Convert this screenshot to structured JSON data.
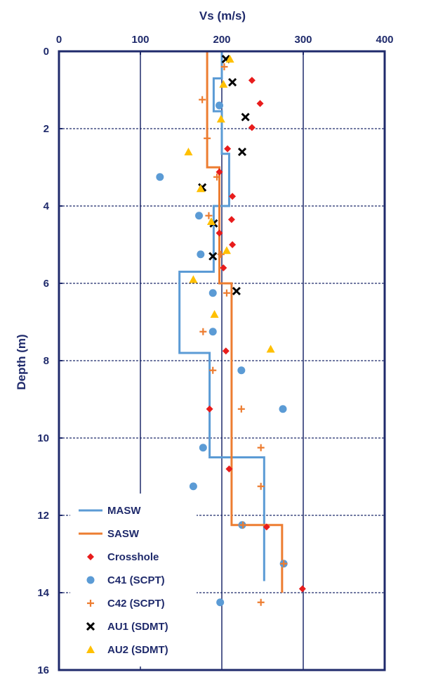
{
  "chart_data": {
    "type": "scatter",
    "title": "",
    "xlabel": "Vs (m/s)",
    "ylabel": "Depth (m)",
    "xlim": [
      0,
      400
    ],
    "ylim": [
      0,
      16
    ],
    "x_axis_position": "top",
    "y_inverted": true,
    "x_ticks": [
      0,
      100,
      200,
      300,
      400
    ],
    "y_ticks": [
      0,
      2,
      4,
      6,
      8,
      10,
      12,
      14,
      16
    ],
    "legend_position": "bottom-left",
    "colors": {
      "axis": "#1f2a6b",
      "masw": "#5b9bd5",
      "sasw": "#ed7d31",
      "crosshole": "#e81c1c",
      "c41": "#5b9bd5",
      "c42": "#ed7d31",
      "au1": "#000000",
      "au2": "#ffc000"
    },
    "series": [
      {
        "name": "MASW",
        "kind": "line",
        "color_key": "masw",
        "points": [
          [
            200,
            0
          ],
          [
            200,
            0.7
          ],
          [
            190,
            0.7
          ],
          [
            190,
            1.55
          ],
          [
            200,
            1.55
          ],
          [
            200,
            2.65
          ],
          [
            209,
            2.65
          ],
          [
            209,
            4.0
          ],
          [
            190,
            4.0
          ],
          [
            190,
            5.7
          ],
          [
            148,
            5.7
          ],
          [
            148,
            7.8
          ],
          [
            185,
            7.8
          ],
          [
            185,
            10.5
          ],
          [
            252,
            10.5
          ],
          [
            252,
            13.7
          ]
        ]
      },
      {
        "name": "SASW",
        "kind": "line",
        "color_key": "sasw",
        "points": [
          [
            182,
            0
          ],
          [
            182,
            3.0
          ],
          [
            197,
            3.0
          ],
          [
            197,
            6.0
          ],
          [
            212,
            6.0
          ],
          [
            212,
            12.25
          ],
          [
            274,
            12.25
          ],
          [
            274,
            14.0
          ]
        ]
      },
      {
        "name": "Crosshole",
        "kind": "marker",
        "marker": "diamond",
        "color_key": "crosshole",
        "points": [
          [
            237,
            0.75
          ],
          [
            247,
            1.35
          ],
          [
            237,
            1.97
          ],
          [
            207,
            2.52
          ],
          [
            197,
            3.12
          ],
          [
            213,
            3.75
          ],
          [
            212,
            4.35
          ],
          [
            197,
            4.7
          ],
          [
            213,
            5.0
          ],
          [
            202,
            5.6
          ],
          [
            205,
            7.75
          ],
          [
            185,
            9.25
          ],
          [
            209,
            10.8
          ],
          [
            255,
            12.3
          ],
          [
            299,
            13.9
          ]
        ]
      },
      {
        "name": "C41 (SCPT)",
        "kind": "marker",
        "marker": "circle",
        "color_key": "c41",
        "points": [
          [
            197,
            1.4
          ],
          [
            124,
            3.25
          ],
          [
            172,
            4.25
          ],
          [
            174,
            5.25
          ],
          [
            189,
            6.25
          ],
          [
            189,
            7.25
          ],
          [
            224,
            8.25
          ],
          [
            275,
            9.25
          ],
          [
            177,
            10.25
          ],
          [
            165,
            11.25
          ],
          [
            225,
            12.25
          ],
          [
            276,
            13.25
          ],
          [
            198,
            14.25
          ]
        ]
      },
      {
        "name": "C42 (SCPT)",
        "kind": "marker",
        "marker": "plus",
        "color_key": "c42",
        "points": [
          [
            203,
            0.4
          ],
          [
            176,
            1.25
          ],
          [
            182,
            2.25
          ],
          [
            194,
            3.25
          ],
          [
            184,
            4.25
          ],
          [
            199,
            5.25
          ],
          [
            206,
            6.25
          ],
          [
            177,
            7.25
          ],
          [
            189,
            8.25
          ],
          [
            224,
            9.25
          ],
          [
            248,
            10.25
          ],
          [
            248,
            11.25
          ],
          [
            226,
            12.25
          ],
          [
            276,
            13.25
          ],
          [
            248,
            14.25
          ]
        ]
      },
      {
        "name": "AU1 (SDMT)",
        "kind": "marker",
        "marker": "x",
        "color_key": "au1",
        "points": [
          [
            205,
            0.2
          ],
          [
            213,
            0.8
          ],
          [
            229,
            1.7
          ],
          [
            225,
            2.6
          ],
          [
            176,
            3.52
          ],
          [
            190,
            4.45
          ],
          [
            189,
            5.3
          ],
          [
            218,
            6.2
          ]
        ]
      },
      {
        "name": "AU2 (SDMT)",
        "kind": "marker",
        "marker": "triangle",
        "color_key": "au2",
        "points": [
          [
            210,
            0.2
          ],
          [
            202,
            0.85
          ],
          [
            199,
            1.75
          ],
          [
            159,
            2.6
          ],
          [
            174,
            3.55
          ],
          [
            187,
            4.4
          ],
          [
            206,
            5.15
          ],
          [
            165,
            5.9
          ],
          [
            191,
            6.8
          ],
          [
            260,
            7.7
          ]
        ]
      }
    ]
  }
}
